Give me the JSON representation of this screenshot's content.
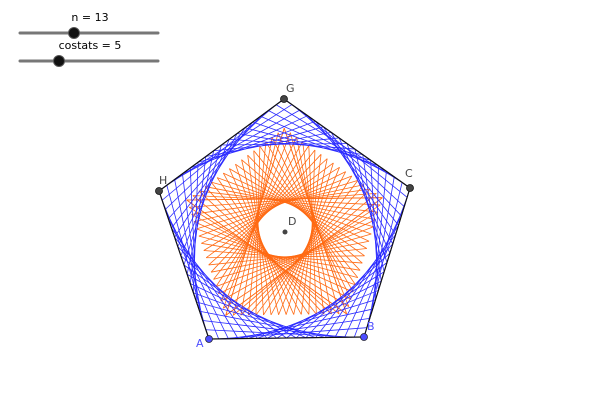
{
  "sliders": [
    {
      "label": "n = 13"
    },
    {
      "label": "costats = 5"
    }
  ],
  "points": [
    {
      "label": "A"
    },
    {
      "label": "B"
    },
    {
      "label": "C"
    },
    {
      "label": "G"
    },
    {
      "label": "H"
    },
    {
      "label": "D"
    }
  ]
}
